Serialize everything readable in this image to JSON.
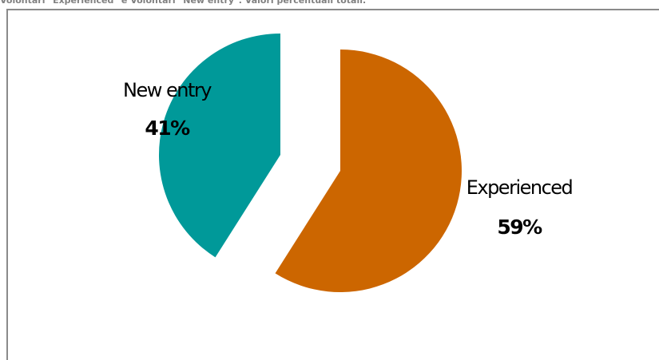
{
  "caption": "Volontari \"Experienced\" e Volontari \"New entry\". Valori percentuali totali.",
  "chart_data": {
    "type": "pie",
    "title": "",
    "legend": "none",
    "slices": [
      {
        "label": "Experienced",
        "value": 59,
        "percent_label": "59%",
        "color": "#CC6600"
      },
      {
        "label": "New entry",
        "value": 41,
        "percent_label": "41%",
        "color": "#009999"
      }
    ]
  }
}
